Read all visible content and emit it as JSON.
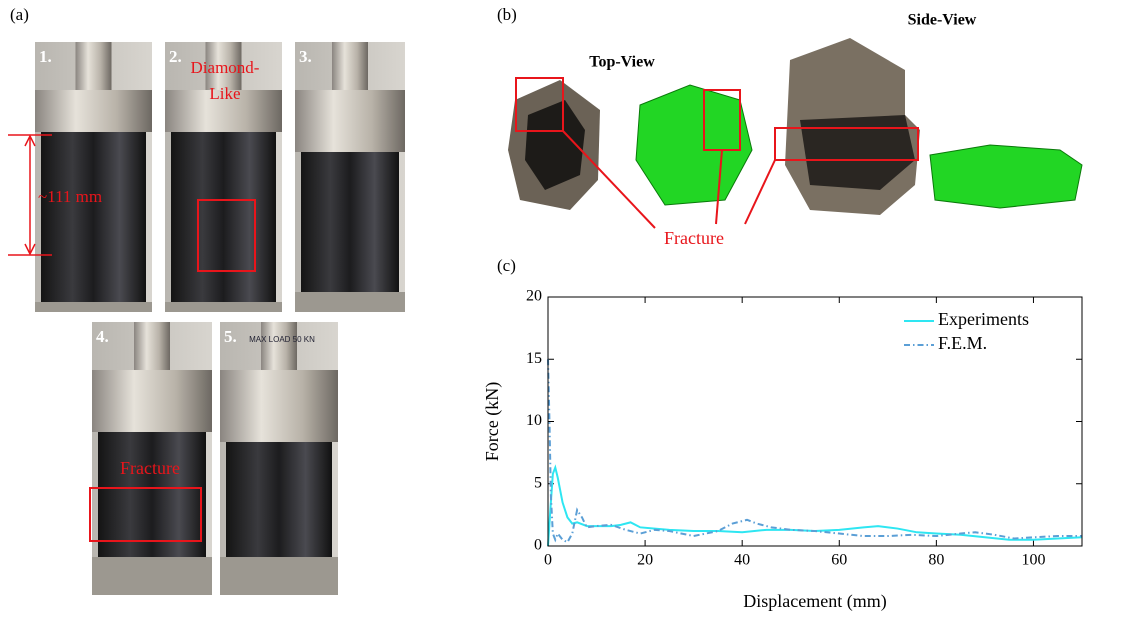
{
  "panels": {
    "a": "(a)",
    "b": "(b)",
    "c": "(c)"
  },
  "photos": [
    {
      "label": "1."
    },
    {
      "label": "2."
    },
    {
      "label": "3."
    },
    {
      "label": "4."
    },
    {
      "label": "5."
    }
  ],
  "annotations": {
    "length": "~111 mm",
    "diamond": [
      "Diamond-",
      "Like"
    ],
    "fracture_photo": "Fracture",
    "top_view": "Top-View",
    "side_view": "Side-View",
    "fracture_model": "Fracture",
    "machine_plate": "MAX LOAD 50 KN"
  },
  "chart_data": {
    "type": "line",
    "xlabel": "Displacement (mm)",
    "ylabel": "Force (kN)",
    "xlim": [
      0,
      110
    ],
    "ylim": [
      0,
      20
    ],
    "xticks": [
      0,
      20,
      40,
      60,
      80,
      100
    ],
    "yticks": [
      0,
      5,
      10,
      15,
      20
    ],
    "legend": "upper right",
    "series": [
      {
        "name": "Experiments",
        "color": "#2ee6f2",
        "dash": "solid",
        "x": [
          0,
          0.5,
          1,
          1.5,
          2,
          3,
          4,
          5,
          6,
          8,
          10,
          13,
          15,
          17,
          19,
          22,
          25,
          30,
          35,
          40,
          45,
          50,
          55,
          60,
          65,
          68,
          72,
          76,
          80,
          85,
          90,
          95,
          100,
          105,
          110
        ],
        "values": [
          0,
          3,
          5.8,
          6.3,
          5.5,
          3.5,
          2.3,
          1.8,
          1.9,
          1.6,
          1.6,
          1.6,
          1.7,
          1.9,
          1.5,
          1.4,
          1.3,
          1.2,
          1.2,
          1.1,
          1.3,
          1.3,
          1.2,
          1.3,
          1.5,
          1.6,
          1.4,
          1.1,
          1.0,
          0.9,
          0.7,
          0.5,
          0.5,
          0.6,
          0.7
        ]
      },
      {
        "name": "F.E.M.",
        "color": "#5b9fd6",
        "dash": "dashdot",
        "x": [
          0,
          0.3,
          0.6,
          1,
          1.5,
          2,
          3,
          4,
          5,
          6,
          7,
          8,
          10,
          13,
          16,
          19,
          22,
          25,
          30,
          35,
          38,
          41,
          43,
          46,
          50,
          55,
          60,
          65,
          70,
          75,
          80,
          85,
          88,
          92,
          96,
          100,
          105,
          110
        ],
        "values": [
          15,
          10,
          4,
          1,
          0.5,
          1,
          0.5,
          0.3,
          1,
          2.9,
          2.3,
          1.5,
          1.6,
          1.7,
          1.3,
          1.0,
          1.3,
          1.2,
          0.8,
          1.2,
          1.8,
          2.1,
          1.8,
          1.5,
          1.3,
          1.2,
          1.0,
          0.8,
          0.8,
          0.9,
          0.8,
          1.0,
          1.1,
          0.9,
          0.6,
          0.7,
          0.8,
          0.8
        ]
      }
    ]
  }
}
